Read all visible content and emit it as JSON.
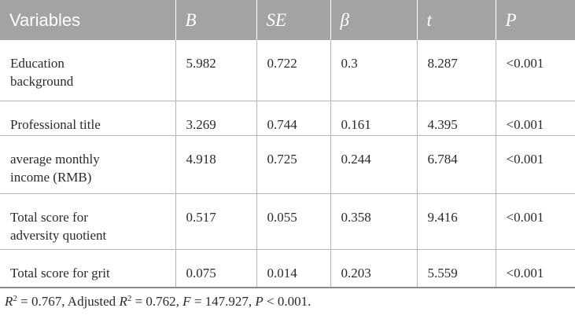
{
  "table": {
    "headers": [
      {
        "label": "Variables",
        "italic": false
      },
      {
        "label": "B",
        "italic": true
      },
      {
        "label": "SE",
        "italic": true
      },
      {
        "label": "β",
        "italic": true
      },
      {
        "label": "t",
        "italic": true
      },
      {
        "label": "P",
        "italic": true
      }
    ],
    "rows": [
      {
        "variable_line1": "Education",
        "variable_line2": "background",
        "B": "5.982",
        "SE": "0.722",
        "beta": "0.3",
        "t": "8.287",
        "P": "<0.001"
      },
      {
        "variable_line1": "Professional title",
        "variable_line2": "",
        "B": "3.269",
        "SE": "0.744",
        "beta": "0.161",
        "t": "4.395",
        "P": "<0.001"
      },
      {
        "variable_line1": "average monthly",
        "variable_line2": "income (RMB)",
        "B": "4.918",
        "SE": "0.725",
        "beta": "0.244",
        "t": "6.784",
        "P": "<0.001"
      },
      {
        "variable_line1": "Total score for",
        "variable_line2": "adversity quotient",
        "B": "0.517",
        "SE": "0.055",
        "beta": "0.358",
        "t": "9.416",
        "P": "<0.001"
      },
      {
        "variable_line1": "Total score for grit",
        "variable_line2": "",
        "B": "0.075",
        "SE": "0.014",
        "beta": "0.203",
        "t": "5.559",
        "P": "<0.001"
      }
    ]
  },
  "footnote": {
    "r2_symbol": "R",
    "r2_exp": "2",
    "r2_value": " = 0.767, Adjusted ",
    "adj_symbol": "R",
    "adj_exp": "2",
    "adj_value": " = 0.762, ",
    "f_symbol": "F",
    "f_value": " = 147.927, ",
    "p_symbol": "P",
    "p_value": " < 0.001."
  }
}
